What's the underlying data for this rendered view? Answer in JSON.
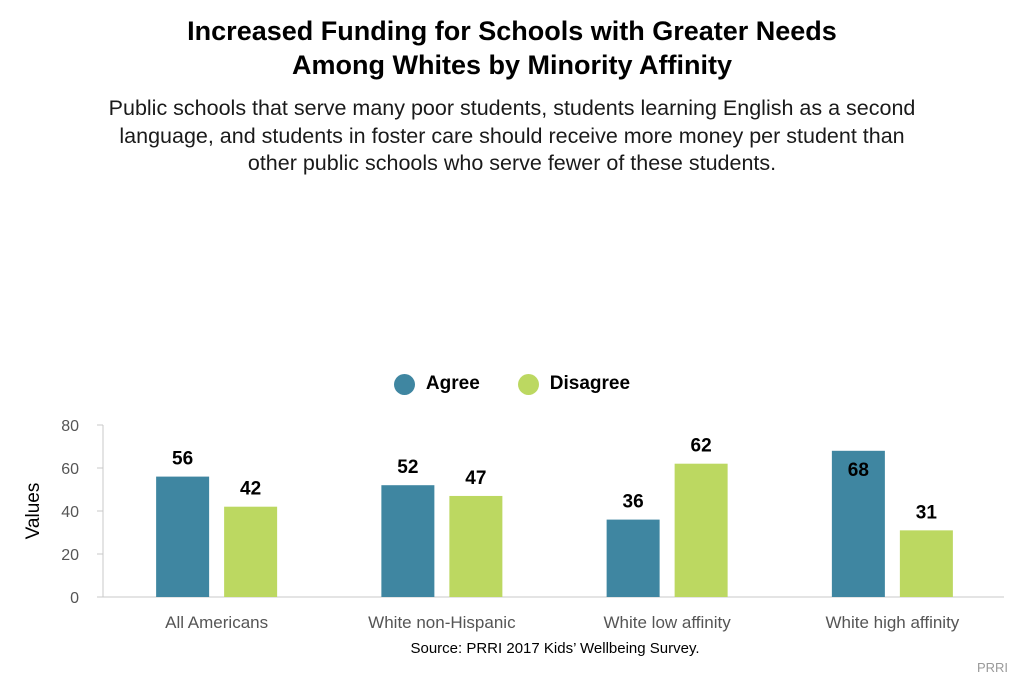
{
  "chart_data": {
    "type": "bar",
    "title_lines": [
      "Increased Funding for Schools with Greater Needs",
      "Among Whites by Minority Affinity"
    ],
    "subtitle_lines": [
      "Public schools that serve many poor students, students learning English as a second",
      "language, and students in foster care should receive more money per student than",
      "other public schools who serve fewer of these students."
    ],
    "categories": [
      "All Americans",
      "White non-Hispanic",
      "White low affinity",
      "White high affinity"
    ],
    "series": [
      {
        "name": "Agree",
        "color": "#3f86a1",
        "values": [
          56,
          52,
          36,
          68
        ]
      },
      {
        "name": "Disagree",
        "color": "#bcd861",
        "values": [
          42,
          47,
          62,
          31
        ]
      }
    ],
    "xlabel": "",
    "ylabel": "Values",
    "ylim": [
      0,
      80
    ],
    "yticks": [
      0,
      20,
      40,
      60,
      80
    ],
    "grid": false,
    "legend_position": "top-center"
  },
  "source": "Source: PRRI 2017 Kids’ Wellbeing Survey.",
  "credit": "PRRI"
}
